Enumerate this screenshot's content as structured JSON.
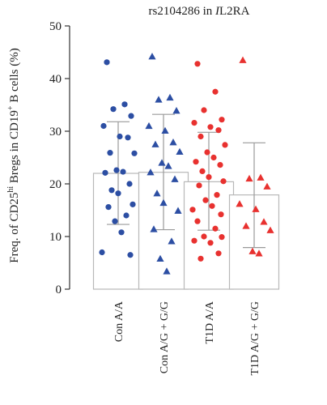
{
  "chart_data": {
    "type": "bar",
    "title": "rs2104286 in IL2RA",
    "title_prefix": "rs2104286 in ",
    "title_gene_italic": "I",
    "title_gene_rest": "L2RA",
    "ylabel": "Freq. of CD25hi Bregs in CD19+ B cells (%)",
    "ylabel_parts": {
      "p1": "Freq. of CD25",
      "p2": "hi",
      "p3": " Bregs in CD19",
      "p4": "+",
      "p5": " B cells (%)"
    },
    "ylim": [
      0,
      50
    ],
    "yticks": [
      "0",
      "10",
      "20",
      "30",
      "40",
      "50"
    ],
    "ytick_values": [
      0,
      10,
      20,
      30,
      40,
      50
    ],
    "categories": [
      "Con A/A",
      "Con A/G + G/G",
      "T1D A/A",
      "T1D A/G + G/G"
    ],
    "bars": [
      {
        "mean": 22.0,
        "sd_low": 12.3,
        "sd_high": 31.8
      },
      {
        "mean": 22.2,
        "sd_low": 11.3,
        "sd_high": 33.2
      },
      {
        "mean": 20.4,
        "sd_low": 11.2,
        "sd_high": 29.8
      },
      {
        "mean": 17.9,
        "sd_low": 7.9,
        "sd_high": 27.8
      }
    ],
    "points": [
      {
        "category": 0,
        "marker": "circle",
        "color": "#2c4ea3",
        "values": [
          43.1,
          35.1,
          34.2,
          32.9,
          31.0,
          29.0,
          28.8,
          25.9,
          25.8,
          22.6,
          22.3,
          22.1,
          20.0,
          18.8,
          18.2,
          16.1,
          15.6,
          14.0,
          12.9,
          10.8,
          7.0,
          6.5
        ]
      },
      {
        "category": 1,
        "marker": "triangle",
        "color": "#2c4ea3",
        "values": [
          44.2,
          36.4,
          36.0,
          33.9,
          31.0,
          30.1,
          27.9,
          27.5,
          26.1,
          24.0,
          23.4,
          22.2,
          20.9,
          18.2,
          16.4,
          14.9,
          11.4,
          9.1,
          5.8,
          3.4
        ]
      },
      {
        "category": 2,
        "marker": "circle",
        "color": "#e8312f",
        "values": [
          42.8,
          37.5,
          34.0,
          32.2,
          31.6,
          30.8,
          30.2,
          29.0,
          27.4,
          26.0,
          25.0,
          24.2,
          23.6,
          22.4,
          21.3,
          20.5,
          19.7,
          17.9,
          16.9,
          15.8,
          15.1,
          14.2,
          12.9,
          11.5,
          10.0,
          9.9,
          9.2,
          8.8,
          6.8,
          5.8
        ]
      },
      {
        "category": 3,
        "marker": "triangle",
        "color": "#e8312f",
        "values": [
          43.5,
          21.2,
          21.0,
          19.5,
          16.2,
          15.2,
          12.8,
          12.0,
          11.2,
          7.2,
          6.8
        ]
      }
    ]
  }
}
